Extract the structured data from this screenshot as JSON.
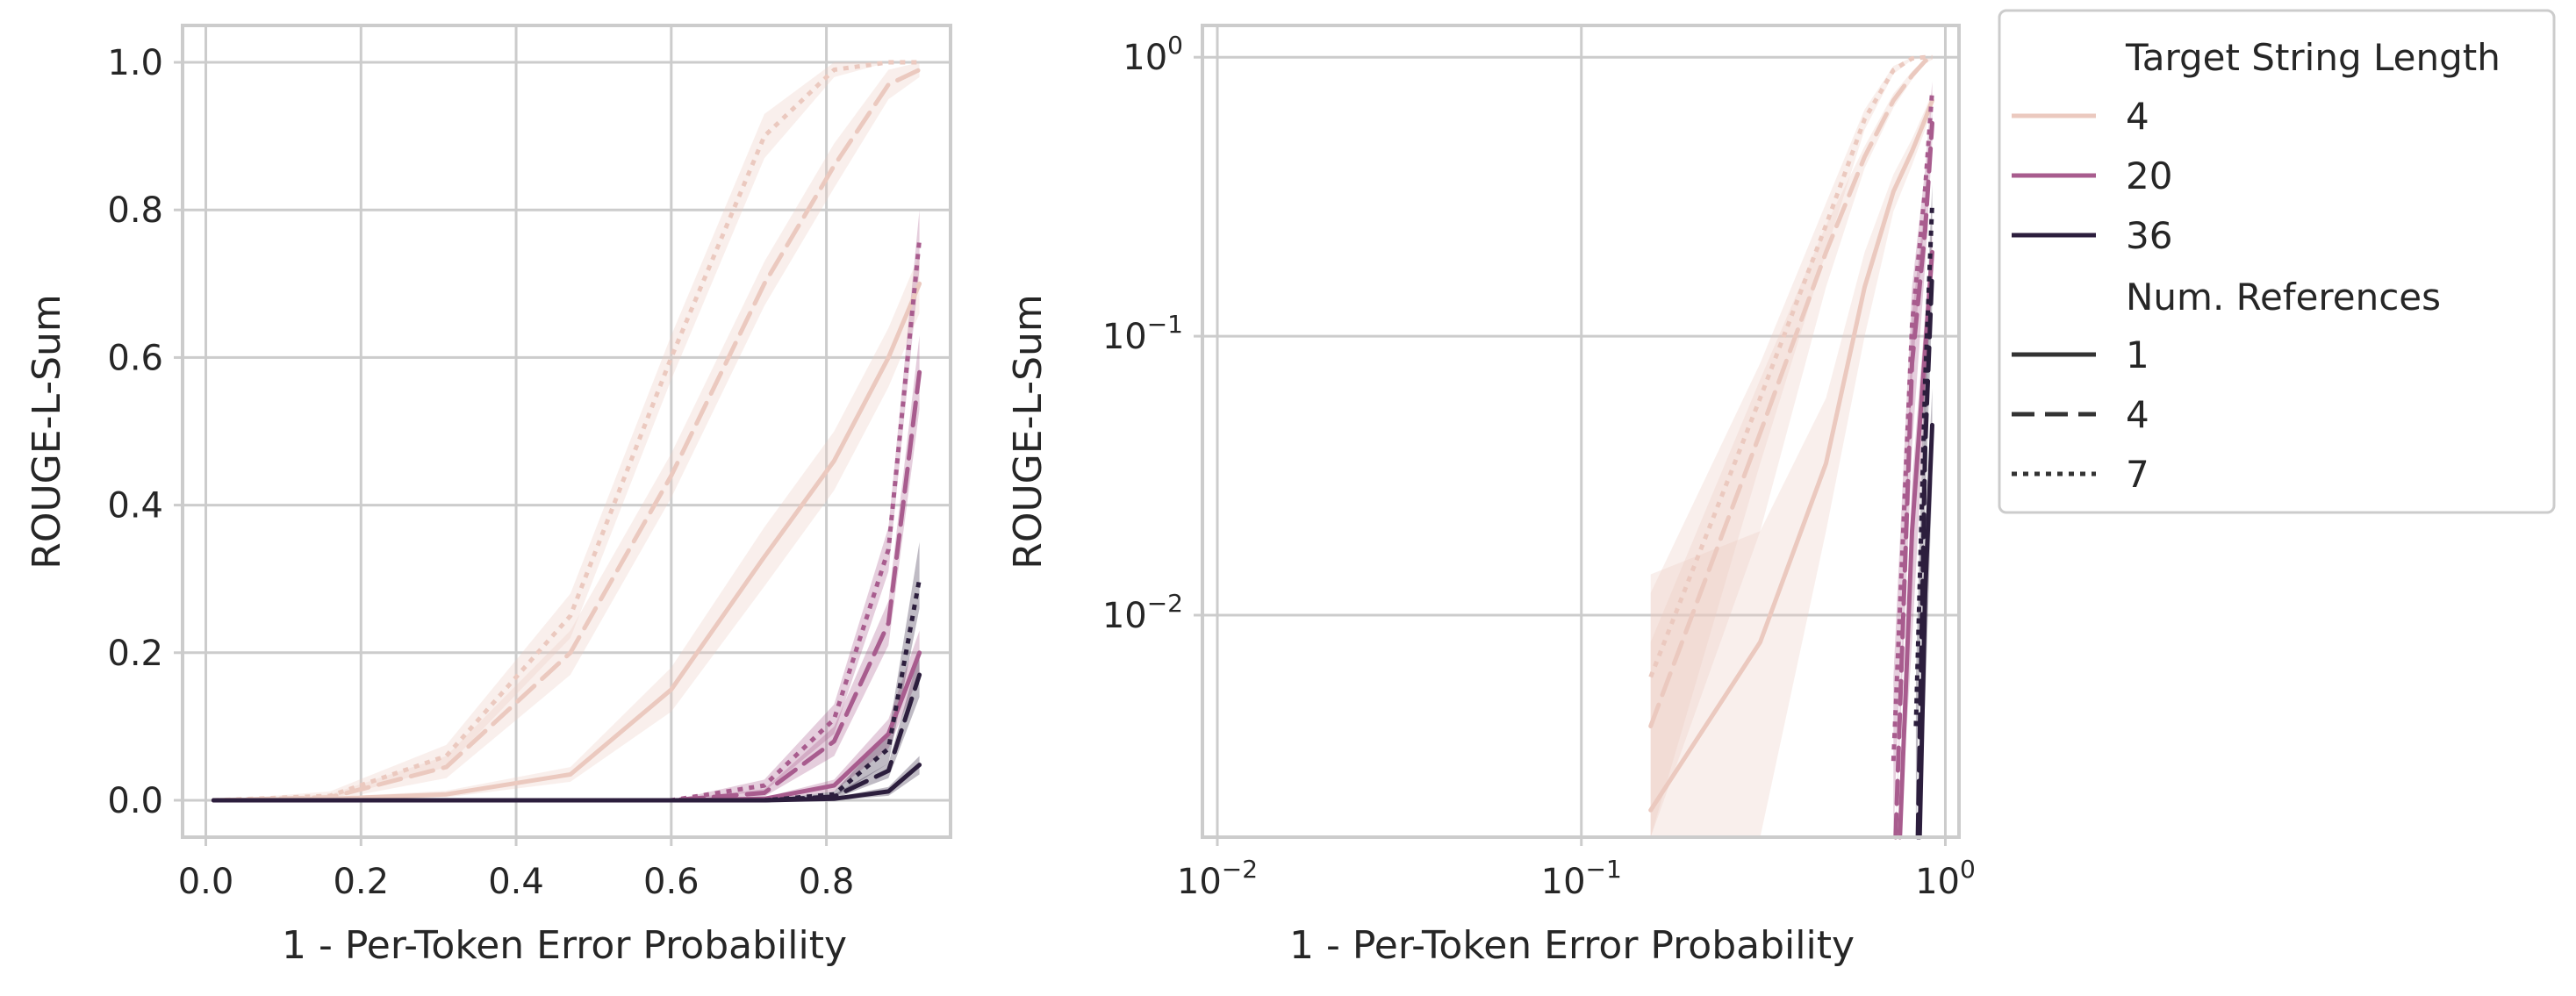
{
  "chart_data": [
    {
      "type": "line",
      "xlabel": "1 - Per-Token Error Probability",
      "ylabel": "ROUGE-L-Sum",
      "xscale": "linear",
      "yscale": "linear",
      "xlim": [
        -0.03,
        0.96
      ],
      "ylim": [
        -0.05,
        1.05
      ],
      "xticks": [
        0.0,
        0.2,
        0.4,
        0.6,
        0.8
      ],
      "xtick_labels": [
        "0.0",
        "0.2",
        "0.4",
        "0.6",
        "0.8"
      ],
      "yticks": [
        0.0,
        0.2,
        0.4,
        0.6,
        0.8,
        1.0
      ],
      "ytick_labels": [
        "0.0",
        "0.2",
        "0.4",
        "0.6",
        "0.8",
        "1.0"
      ],
      "grid": true,
      "series": [
        {
          "target_length": "4",
          "num_references": "1",
          "color": "#ebc9bf",
          "dash": "solid",
          "x": [
            0.01,
            0.16,
            0.31,
            0.47,
            0.6,
            0.72,
            0.81,
            0.88,
            0.92
          ],
          "y": [
            0.0,
            0.002,
            0.008,
            0.035,
            0.15,
            0.33,
            0.46,
            0.6,
            0.7
          ],
          "lo": [
            0.0,
            0.0,
            0.004,
            0.025,
            0.12,
            0.29,
            0.42,
            0.56,
            0.66
          ],
          "hi": [
            0.0,
            0.004,
            0.013,
            0.045,
            0.18,
            0.37,
            0.5,
            0.64,
            0.74
          ]
        },
        {
          "target_length": "4",
          "num_references": "4",
          "color": "#ebc9bf",
          "dash": "dashed",
          "x": [
            0.01,
            0.16,
            0.31,
            0.47,
            0.6,
            0.72,
            0.81,
            0.88,
            0.92
          ],
          "y": [
            0.0,
            0.004,
            0.045,
            0.2,
            0.44,
            0.7,
            0.86,
            0.97,
            0.99
          ],
          "lo": [
            0.0,
            0.0,
            0.03,
            0.17,
            0.41,
            0.67,
            0.83,
            0.95,
            0.98
          ],
          "hi": [
            0.0,
            0.008,
            0.06,
            0.23,
            0.47,
            0.73,
            0.89,
            0.99,
            1.0
          ]
        },
        {
          "target_length": "4",
          "num_references": "7",
          "color": "#ebc9bf",
          "dash": "dotted",
          "x": [
            0.01,
            0.16,
            0.31,
            0.47,
            0.6,
            0.72,
            0.81,
            0.88,
            0.92
          ],
          "y": [
            0.0,
            0.006,
            0.06,
            0.25,
            0.6,
            0.9,
            0.99,
            1.0,
            1.0
          ],
          "lo": [
            0.0,
            0.001,
            0.045,
            0.22,
            0.57,
            0.87,
            0.98,
            1.0,
            1.0
          ],
          "hi": [
            0.0,
            0.012,
            0.075,
            0.28,
            0.63,
            0.93,
            1.0,
            1.0,
            1.0
          ]
        },
        {
          "target_length": "20",
          "num_references": "1",
          "color": "#a85c8e",
          "dash": "solid",
          "x": [
            0.01,
            0.6,
            0.72,
            0.81,
            0.88,
            0.92
          ],
          "y": [
            0.0,
            0.0,
            0.002,
            0.02,
            0.09,
            0.2
          ],
          "lo": [
            0.0,
            0.0,
            0.0,
            0.012,
            0.07,
            0.17
          ],
          "hi": [
            0.0,
            0.0,
            0.004,
            0.028,
            0.11,
            0.23
          ]
        },
        {
          "target_length": "20",
          "num_references": "4",
          "color": "#a85c8e",
          "dash": "dashed",
          "x": [
            0.01,
            0.6,
            0.72,
            0.81,
            0.88,
            0.92
          ],
          "y": [
            0.0,
            0.0,
            0.01,
            0.08,
            0.24,
            0.58
          ],
          "lo": [
            0.0,
            0.0,
            0.005,
            0.06,
            0.21,
            0.53
          ],
          "hi": [
            0.0,
            0.0,
            0.015,
            0.1,
            0.27,
            0.63
          ]
        },
        {
          "target_length": "20",
          "num_references": "7",
          "color": "#a85c8e",
          "dash": "dotted",
          "x": [
            0.01,
            0.6,
            0.72,
            0.81,
            0.88,
            0.92
          ],
          "y": [
            0.0,
            0.0,
            0.02,
            0.11,
            0.34,
            0.76
          ],
          "lo": [
            0.0,
            0.0,
            0.012,
            0.09,
            0.31,
            0.72
          ],
          "hi": [
            0.0,
            0.0,
            0.028,
            0.13,
            0.37,
            0.8
          ]
        },
        {
          "target_length": "36",
          "num_references": "1",
          "color": "#2c1e3d",
          "dash": "solid",
          "x": [
            0.01,
            0.72,
            0.81,
            0.88,
            0.92
          ],
          "y": [
            0.0,
            0.0,
            0.002,
            0.012,
            0.048
          ],
          "lo": [
            0.0,
            0.0,
            0.0,
            0.006,
            0.035
          ],
          "hi": [
            0.0,
            0.0,
            0.004,
            0.018,
            0.06
          ]
        },
        {
          "target_length": "36",
          "num_references": "4",
          "color": "#2c1e3d",
          "dash": "dashed",
          "x": [
            0.01,
            0.72,
            0.81,
            0.88,
            0.92
          ],
          "y": [
            0.0,
            0.0,
            0.005,
            0.04,
            0.17
          ],
          "lo": [
            0.0,
            0.0,
            0.002,
            0.03,
            0.14
          ],
          "hi": [
            0.0,
            0.0,
            0.008,
            0.05,
            0.2
          ]
        },
        {
          "target_length": "36",
          "num_references": "7",
          "color": "#2c1e3d",
          "dash": "dotted",
          "x": [
            0.01,
            0.72,
            0.81,
            0.88,
            0.92
          ],
          "y": [
            0.0,
            0.0,
            0.008,
            0.07,
            0.3
          ],
          "lo": [
            0.0,
            0.0,
            0.004,
            0.05,
            0.26
          ],
          "hi": [
            0.0,
            0.0,
            0.012,
            0.09,
            0.35
          ]
        }
      ]
    },
    {
      "type": "line",
      "xlabel": "1 - Per-Token Error Probability",
      "ylabel": "ROUGE-L-Sum",
      "xscale": "log",
      "yscale": "log",
      "xlim": [
        0.0091,
        1.09
      ],
      "ylim": [
        0.0016,
        1.3
      ],
      "xticks": [
        0.01,
        0.1,
        1
      ],
      "xtick_labels": [
        [
          "10",
          "−2"
        ],
        [
          "10",
          "−1"
        ],
        [
          "10",
          "0"
        ]
      ],
      "yticks": [
        0.01,
        0.1,
        1
      ],
      "ytick_labels": [
        [
          "10",
          "−2"
        ],
        [
          "10",
          "−1"
        ],
        [
          "10",
          "0"
        ]
      ],
      "grid": true,
      "series": [
        {
          "target_length": "4",
          "num_references": "1",
          "color": "#ebc9bf",
          "dash": "solid",
          "x": [
            0.155,
            0.31,
            0.47,
            0.6,
            0.72,
            0.81,
            0.88,
            0.92
          ],
          "y": [
            0.002,
            0.008,
            0.035,
            0.15,
            0.33,
            0.46,
            0.6,
            0.7
          ],
          "lo": [
            0.0016,
            0.0016,
            0.02,
            0.1,
            0.28,
            0.41,
            0.55,
            0.65
          ],
          "hi": [
            0.014,
            0.02,
            0.06,
            0.2,
            0.38,
            0.51,
            0.65,
            0.75
          ]
        },
        {
          "target_length": "4",
          "num_references": "4",
          "color": "#ebc9bf",
          "dash": "dashed",
          "x": [
            0.155,
            0.31,
            0.47,
            0.6,
            0.72,
            0.81,
            0.88,
            0.92
          ],
          "y": [
            0.004,
            0.045,
            0.2,
            0.44,
            0.7,
            0.86,
            0.97,
            0.99
          ],
          "lo": [
            0.0016,
            0.02,
            0.15,
            0.4,
            0.66,
            0.83,
            0.95,
            0.98
          ],
          "hi": [
            0.008,
            0.07,
            0.25,
            0.48,
            0.74,
            0.89,
            0.99,
            1.0
          ]
        },
        {
          "target_length": "4",
          "num_references": "7",
          "color": "#ebc9bf",
          "dash": "dotted",
          "x": [
            0.155,
            0.31,
            0.47,
            0.6,
            0.72,
            0.81,
            0.88,
            0.92
          ],
          "y": [
            0.006,
            0.06,
            0.25,
            0.6,
            0.9,
            0.99,
            1.0,
            1.0
          ],
          "lo": [
            0.0016,
            0.035,
            0.2,
            0.55,
            0.87,
            0.98,
            1.0,
            1.0
          ],
          "hi": [
            0.012,
            0.08,
            0.3,
            0.65,
            0.93,
            1.0,
            1.0,
            1.0
          ]
        },
        {
          "target_length": "20",
          "num_references": "1",
          "color": "#a85c8e",
          "dash": "solid",
          "x": [
            0.75,
            0.81,
            0.88,
            0.92
          ],
          "y": [
            0.0016,
            0.02,
            0.09,
            0.2
          ],
          "lo": [
            0.0016,
            0.008,
            0.06,
            0.15
          ],
          "hi": [
            0.0016,
            0.03,
            0.12,
            0.25
          ]
        },
        {
          "target_length": "20",
          "num_references": "4",
          "color": "#a85c8e",
          "dash": "dashed",
          "x": [
            0.73,
            0.81,
            0.88,
            0.92
          ],
          "y": [
            0.0016,
            0.08,
            0.24,
            0.58
          ],
          "lo": [
            0.0016,
            0.04,
            0.18,
            0.5
          ],
          "hi": [
            0.0016,
            0.12,
            0.3,
            0.65
          ]
        },
        {
          "target_length": "20",
          "num_references": "7",
          "color": "#a85c8e",
          "dash": "dotted",
          "x": [
            0.72,
            0.81,
            0.88,
            0.92
          ],
          "y": [
            0.003,
            0.11,
            0.34,
            0.76
          ],
          "lo": [
            0.0016,
            0.07,
            0.28,
            0.7
          ],
          "hi": [
            0.006,
            0.15,
            0.4,
            0.82
          ]
        },
        {
          "target_length": "36",
          "num_references": "1",
          "color": "#2c1e3d",
          "dash": "solid",
          "x": [
            0.85,
            0.88,
            0.92
          ],
          "y": [
            0.0016,
            0.012,
            0.048
          ],
          "lo": [
            0.0016,
            0.005,
            0.03
          ],
          "hi": [
            0.0016,
            0.02,
            0.065
          ]
        },
        {
          "target_length": "36",
          "num_references": "4",
          "color": "#2c1e3d",
          "dash": "dashed",
          "x": [
            0.84,
            0.88,
            0.92
          ],
          "y": [
            0.0016,
            0.04,
            0.17
          ],
          "lo": [
            0.0016,
            0.025,
            0.13
          ],
          "hi": [
            0.0016,
            0.055,
            0.21
          ]
        },
        {
          "target_length": "36",
          "num_references": "7",
          "color": "#2c1e3d",
          "dash": "dotted",
          "x": [
            0.83,
            0.88,
            0.92
          ],
          "y": [
            0.004,
            0.07,
            0.3
          ],
          "lo": [
            0.0016,
            0.045,
            0.25
          ],
          "hi": [
            0.006,
            0.095,
            0.35
          ]
        }
      ]
    }
  ],
  "legend": {
    "placement": "outside-right",
    "hue_title": "Target String Length",
    "hue_entries": [
      {
        "label": "4",
        "color": "#ebc9bf"
      },
      {
        "label": "20",
        "color": "#a85c8e"
      },
      {
        "label": "36",
        "color": "#2c1e3d"
      }
    ],
    "style_title": "Num. References",
    "style_entries": [
      {
        "label": "1",
        "dash": "solid",
        "color": "#333333"
      },
      {
        "label": "4",
        "dash": "dashed",
        "color": "#333333"
      },
      {
        "label": "7",
        "dash": "dotted",
        "color": "#333333"
      }
    ]
  }
}
